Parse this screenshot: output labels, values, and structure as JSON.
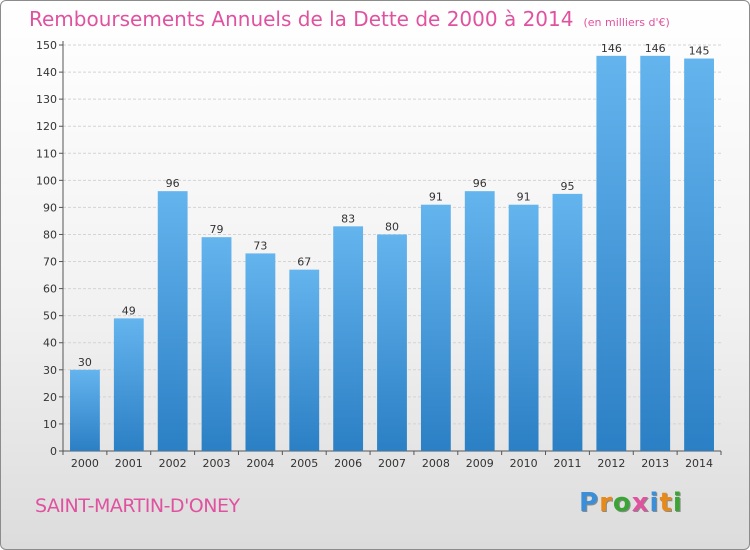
{
  "chart_data": {
    "type": "bar",
    "title": "Remboursements Annuels de la Dette de 2000 à 2014",
    "subtitle": "(en milliers d'€)",
    "categories": [
      "2000",
      "2001",
      "2002",
      "2003",
      "2004",
      "2005",
      "2006",
      "2007",
      "2008",
      "2009",
      "2010",
      "2011",
      "2012",
      "2013",
      "2014"
    ],
    "values": [
      30,
      49,
      96,
      79,
      73,
      67,
      83,
      80,
      91,
      96,
      91,
      95,
      146,
      146,
      145
    ],
    "yticks": [
      0,
      10,
      20,
      30,
      40,
      50,
      60,
      70,
      80,
      90,
      100,
      110,
      120,
      130,
      140,
      150
    ],
    "ylim": [
      0,
      150
    ],
    "xlabel": "",
    "ylabel": "",
    "grid": true,
    "bar_color": "#4a9fe0"
  },
  "footer": {
    "place": "SAINT-MARTIN-D'ONEY",
    "logo_letters": [
      {
        "char": "P",
        "color": "#3a8fd8"
      },
      {
        "char": "r",
        "color": "#e88a1a"
      },
      {
        "char": "o",
        "color": "#3aa535"
      },
      {
        "char": "x",
        "color": "#e0529f"
      },
      {
        "char": "i",
        "color": "#3a8fd8"
      },
      {
        "char": "t",
        "color": "#e88a1a"
      },
      {
        "char": "i",
        "color": "#3aa535"
      }
    ]
  }
}
